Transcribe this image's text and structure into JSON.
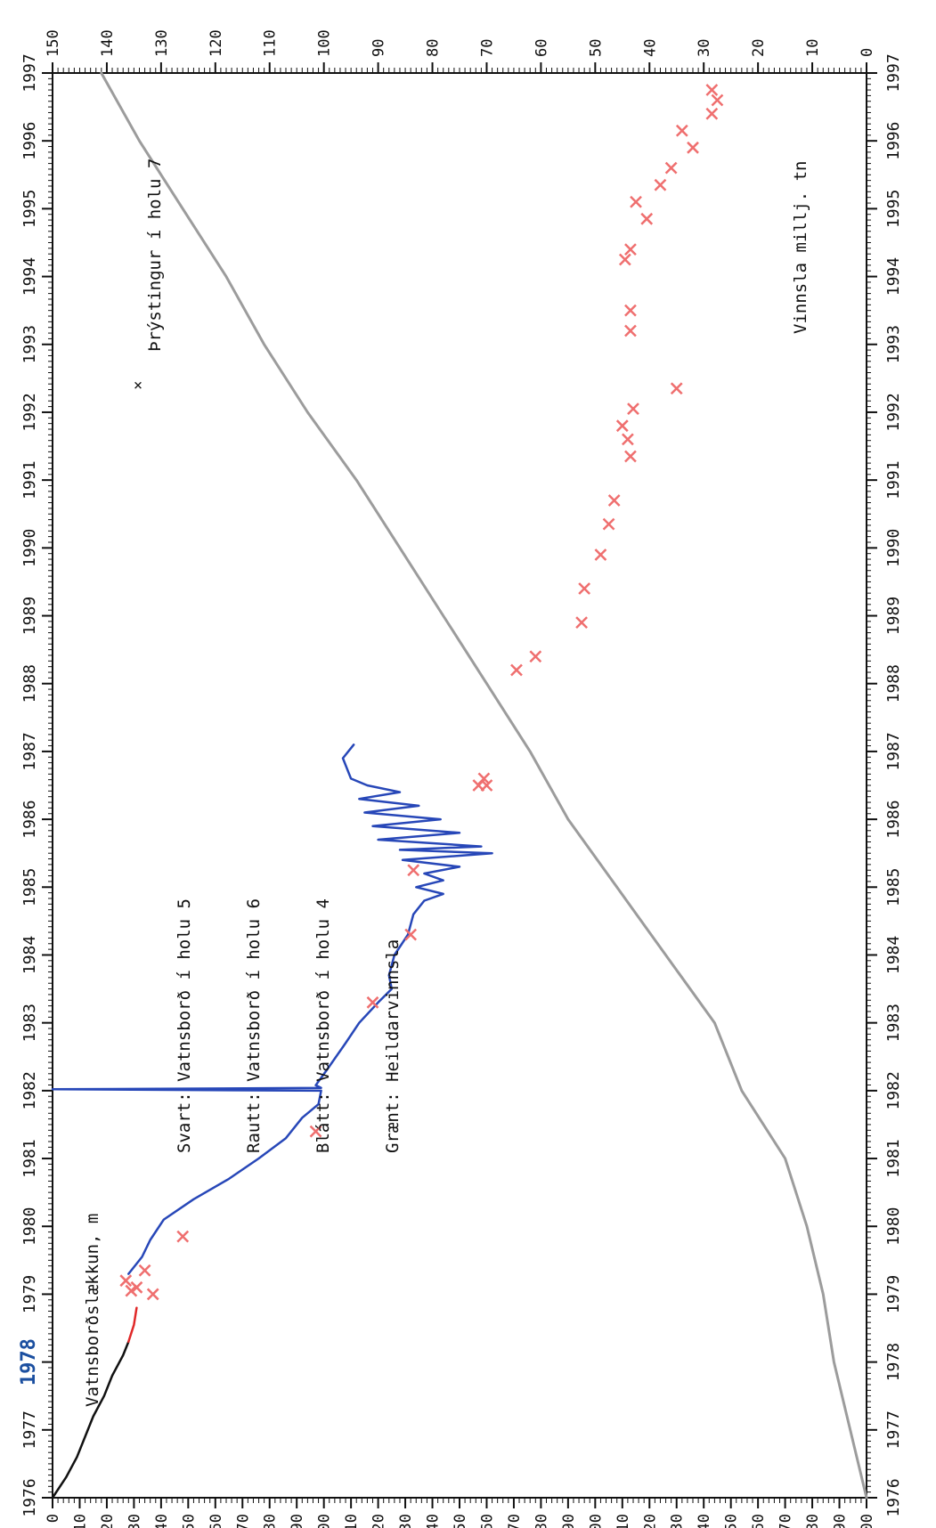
{
  "chart_data": {
    "type": "line",
    "orientation": "rotated 90 degrees counter-clockwise; time axis runs along the long side of the page",
    "x_axis": {
      "label": "",
      "range": [
        1976,
        1997
      ],
      "ticks": [
        "1976",
        "1977",
        "1978",
        "1979",
        "1980",
        "1981",
        "1982",
        "1983",
        "1984",
        "1985",
        "1986",
        "1987",
        "1988",
        "1989",
        "1990",
        "1991",
        "1992",
        "1993",
        "1994",
        "1995",
        "1996",
        "1997"
      ],
      "highlighted_tick": "1978"
    },
    "y_left": {
      "label": "Vatnsborðslækkun, m",
      "range": [
        0,
        300
      ],
      "ticks": [
        0,
        10,
        20,
        30,
        40,
        50,
        60,
        70,
        80,
        90,
        100,
        110,
        120,
        130,
        140,
        150,
        160,
        170,
        180,
        190,
        200,
        210,
        220,
        230,
        240,
        250,
        260,
        270,
        280,
        290,
        300
      ]
    },
    "y_right": {
      "label": "Vinnsla millj. tn",
      "range": [
        0,
        150
      ],
      "ticks": [
        0,
        10,
        20,
        30,
        40,
        50,
        60,
        70,
        80,
        90,
        100,
        110,
        120,
        130,
        140,
        150
      ]
    },
    "legend": [
      {
        "key": "black",
        "text": "Svart: Vatnsborð í holu 5"
      },
      {
        "key": "red",
        "text": "Rautt: Vatnsborð í holu 6"
      },
      {
        "key": "blue",
        "text": "Blátt: Vatnsborð í holu 4"
      },
      {
        "key": "green",
        "text": "Grænt: Heildarvinnsla"
      }
    ],
    "marker_legend": {
      "symbol": "×",
      "text": "Þrýstingur í holu 7"
    },
    "series": [
      {
        "key": "black",
        "color": "#111111",
        "axis": "left",
        "points": [
          [
            1976.0,
            0
          ],
          [
            1976.3,
            5
          ],
          [
            1976.6,
            9
          ],
          [
            1976.9,
            12
          ],
          [
            1977.2,
            15
          ],
          [
            1977.5,
            19
          ],
          [
            1977.8,
            22
          ],
          [
            1978.1,
            26
          ],
          [
            1978.3,
            28
          ]
        ]
      },
      {
        "key": "red",
        "color": "#e02828",
        "axis": "left",
        "points": [
          [
            1978.3,
            28
          ],
          [
            1978.55,
            30
          ],
          [
            1978.8,
            31
          ]
        ]
      },
      {
        "key": "blue",
        "color": "#2747b8",
        "axis": "left",
        "points": [
          [
            1979.3,
            28
          ],
          [
            1979.55,
            33
          ],
          [
            1979.8,
            36
          ],
          [
            1980.1,
            41
          ],
          [
            1980.4,
            52
          ],
          [
            1980.7,
            65
          ],
          [
            1981.0,
            76
          ],
          [
            1981.3,
            86
          ],
          [
            1981.6,
            92
          ],
          [
            1981.8,
            98
          ],
          [
            1982.0,
            99
          ],
          [
            1982.02,
            0
          ],
          [
            1982.04,
            99
          ],
          [
            1982.08,
            97
          ],
          [
            1982.3,
            101
          ],
          [
            1982.7,
            108
          ],
          [
            1983.0,
            113
          ],
          [
            1983.3,
            120
          ],
          [
            1983.5,
            125
          ],
          [
            1983.7,
            124
          ],
          [
            1984.0,
            126
          ],
          [
            1984.3,
            131
          ],
          [
            1984.6,
            133
          ],
          [
            1984.8,
            137
          ],
          [
            1984.9,
            144
          ],
          [
            1985.0,
            134
          ],
          [
            1985.1,
            144
          ],
          [
            1985.2,
            137
          ],
          [
            1985.3,
            150
          ],
          [
            1985.4,
            129
          ],
          [
            1985.5,
            162
          ],
          [
            1985.55,
            128
          ],
          [
            1985.6,
            158
          ],
          [
            1985.7,
            120
          ],
          [
            1985.8,
            150
          ],
          [
            1985.9,
            118
          ],
          [
            1986.0,
            143
          ],
          [
            1986.1,
            115
          ],
          [
            1986.2,
            135
          ],
          [
            1986.3,
            113
          ],
          [
            1986.4,
            128
          ],
          [
            1986.5,
            116
          ],
          [
            1986.6,
            110
          ],
          [
            1986.9,
            107
          ],
          [
            1987.1,
            111
          ]
        ]
      },
      {
        "key": "green",
        "color": "#9c9c9c",
        "axis": "right",
        "points": [
          [
            1976.0,
            0
          ],
          [
            1977.0,
            3
          ],
          [
            1978.0,
            6
          ],
          [
            1979.0,
            8
          ],
          [
            1980.0,
            11
          ],
          [
            1981.0,
            15
          ],
          [
            1982.0,
            23
          ],
          [
            1983.0,
            28
          ],
          [
            1984.0,
            37
          ],
          [
            1985.0,
            46
          ],
          [
            1986.0,
            55
          ],
          [
            1987.0,
            62
          ],
          [
            1988.0,
            70
          ],
          [
            1989.0,
            78
          ],
          [
            1990.0,
            86
          ],
          [
            1991.0,
            94
          ],
          [
            1992.0,
            103
          ],
          [
            1993.0,
            111
          ],
          [
            1994.0,
            118
          ],
          [
            1995.0,
            126
          ],
          [
            1996.0,
            134
          ],
          [
            1997.0,
            141
          ]
        ]
      }
    ],
    "markers": {
      "key": "x",
      "color": "#ef6f6f",
      "axis": "left",
      "points": [
        [
          1979.0,
          37
        ],
        [
          1979.05,
          29
        ],
        [
          1979.1,
          31
        ],
        [
          1979.2,
          27
        ],
        [
          1979.35,
          34
        ],
        [
          1979.85,
          48
        ],
        [
          1981.4,
          97
        ],
        [
          1983.3,
          118
        ],
        [
          1984.3,
          132
        ],
        [
          1985.25,
          133
        ],
        [
          1986.5,
          157
        ],
        [
          1986.5,
          160
        ],
        [
          1986.6,
          159
        ],
        [
          1988.2,
          171
        ],
        [
          1988.4,
          178
        ],
        [
          1988.9,
          195
        ],
        [
          1989.4,
          196
        ],
        [
          1989.9,
          202
        ],
        [
          1990.35,
          205
        ],
        [
          1990.7,
          207
        ],
        [
          1991.35,
          213
        ],
        [
          1991.6,
          212
        ],
        [
          1991.8,
          210
        ],
        [
          1992.05,
          214
        ],
        [
          1992.35,
          230
        ],
        [
          1993.2,
          213
        ],
        [
          1993.5,
          213
        ],
        [
          1994.25,
          211
        ],
        [
          1994.4,
          213
        ],
        [
          1994.85,
          219
        ],
        [
          1995.1,
          215
        ],
        [
          1995.35,
          224
        ],
        [
          1995.6,
          228
        ],
        [
          1995.9,
          236
        ],
        [
          1996.15,
          232
        ],
        [
          1996.4,
          243
        ],
        [
          1996.6,
          245
        ],
        [
          1996.75,
          243
        ]
      ]
    }
  }
}
